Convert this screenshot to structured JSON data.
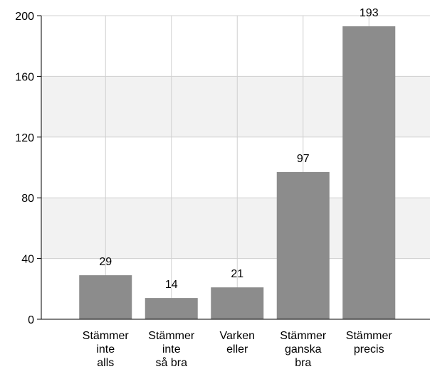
{
  "chart_data": {
    "type": "bar",
    "title": "",
    "xlabel": "",
    "ylabel": "",
    "categories": [
      [
        "Stämmer",
        "inte",
        "alls"
      ],
      [
        "Stämmer",
        "inte",
        "så bra"
      ],
      [
        "Varken",
        "eller"
      ],
      [
        "Stämmer",
        "ganska",
        "bra"
      ],
      [
        "Stämmer",
        "precis"
      ]
    ],
    "values": [
      29,
      14,
      21,
      97,
      193
    ],
    "ylim": [
      0,
      200
    ],
    "yticks": [
      0,
      40,
      80,
      120,
      160,
      200
    ],
    "grid": true,
    "bar_color": "#8c8c8c",
    "band_color": "#f2f2f2",
    "grid_color": "#d0d0d0",
    "axis_color": "#000000"
  }
}
